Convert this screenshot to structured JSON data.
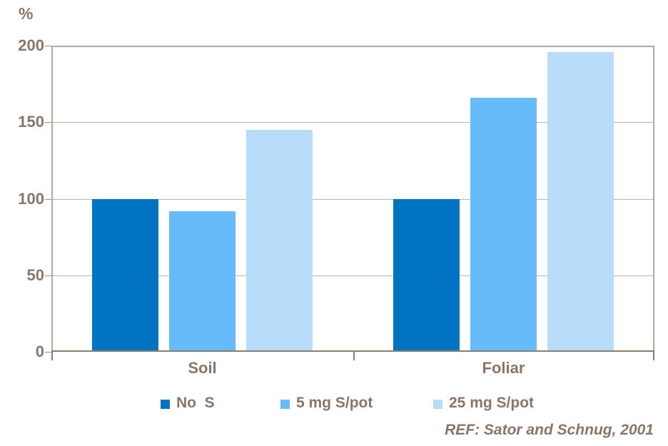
{
  "chart_data": {
    "type": "bar",
    "title": "",
    "ylabel": "%",
    "categories": [
      "Soil",
      "Foliar"
    ],
    "series": [
      {
        "name": "No  S",
        "color": "#0074c2",
        "values": [
          100,
          100
        ]
      },
      {
        "name": "5 mg S/pot",
        "color": "#66bbfa",
        "values": [
          92,
          166
        ]
      },
      {
        "name": "25 mg S/pot",
        "color": "#b8ddfb",
        "values": [
          145,
          196
        ]
      }
    ],
    "ylim": [
      0,
      200
    ],
    "yticks": [
      0,
      50,
      100,
      150,
      200
    ],
    "grid": true,
    "legend_position": "bottom"
  },
  "footnote": "REF: Sator and Schnug, 2001",
  "colors": {
    "text": "#8a7668",
    "axis_light": "#b3a89c",
    "axis_dark": "#8a7e6d",
    "gridline": "#bdb3a7"
  }
}
